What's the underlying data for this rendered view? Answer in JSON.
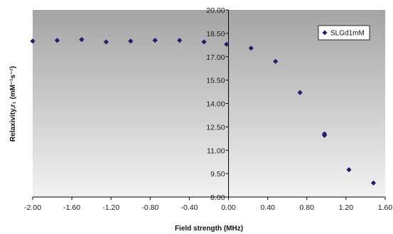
{
  "chart_data": {
    "type": "scatter",
    "xlabel": "Field strength (MHz)",
    "ylabel": "Relaxivity,r₁ (mM⁻¹s⁻¹)",
    "xlim": [
      -2.0,
      1.6
    ],
    "ylim": [
      8.0,
      20.0
    ],
    "x_tick_labels": [
      "-2.00",
      "-1.60",
      "-1.20",
      "-0.80",
      "-0.40",
      "0.00",
      "0.40",
      "0.80",
      "1.20",
      "1.60"
    ],
    "y_tick_labels": [
      "8.00",
      "9.50",
      "11.00",
      "12.50",
      "14.00",
      "15.50",
      "17.00",
      "18.50",
      "20.00"
    ],
    "grid": false,
    "legend_position": "top-right",
    "series": [
      {
        "name": "SLGd1mM",
        "color": "#1f1f6e",
        "marker": "diamond",
        "x": [
          -2.0,
          -1.75,
          -1.5,
          -1.25,
          -1.0,
          -0.75,
          -0.5,
          -0.25,
          -0.02,
          0.23,
          0.48,
          0.73,
          0.98,
          0.98,
          1.23,
          1.48
        ],
        "y": [
          18.0,
          18.05,
          18.1,
          17.95,
          18.0,
          18.05,
          18.05,
          17.95,
          17.8,
          17.55,
          16.7,
          14.7,
          12.05,
          11.95,
          9.75,
          8.9
        ]
      }
    ],
    "colors": {
      "plot_background_top": "#a4a4a4",
      "plot_background_bottom": "#f2f2f2",
      "axis": "#000000",
      "marker": "#1f1f6e"
    }
  }
}
